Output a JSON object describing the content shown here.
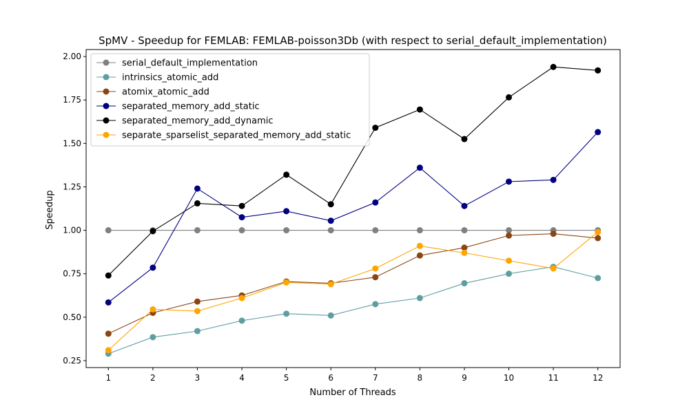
{
  "chart_data": {
    "type": "line",
    "title": "SpMV - Speedup for FEMLAB: FEMLAB-poisson3Db (with respect to serial_default_implementation)",
    "xlabel": "Number of Threads",
    "ylabel": "Speedup",
    "x": [
      1,
      2,
      3,
      4,
      5,
      6,
      7,
      8,
      9,
      10,
      11,
      12
    ],
    "xlim": [
      0.5,
      12.5
    ],
    "ylim": [
      0.21,
      2.04
    ],
    "yticks": [
      "0.25",
      "0.50",
      "0.75",
      "1.00",
      "1.25",
      "1.50",
      "1.75",
      "2.00"
    ],
    "grid": false,
    "legend_position": "top-left",
    "series": [
      {
        "name": "serial_default_implementation",
        "color": "#808080",
        "values": [
          1.0,
          1.0,
          1.0,
          1.0,
          1.0,
          1.0,
          1.0,
          1.0,
          1.0,
          1.0,
          1.0,
          1.0
        ]
      },
      {
        "name": "intrinsics_atomic_add",
        "color": "#5f9ea0",
        "values": [
          0.29,
          0.385,
          0.42,
          0.48,
          0.52,
          0.51,
          0.575,
          0.61,
          0.695,
          0.75,
          0.79,
          0.725
        ]
      },
      {
        "name": "atomix_atomic_add",
        "color": "#8b4513",
        "values": [
          0.405,
          0.525,
          0.59,
          0.625,
          0.705,
          0.695,
          0.73,
          0.855,
          0.9,
          0.97,
          0.98,
          0.955
        ]
      },
      {
        "name": "separated_memory_add_static",
        "color": "#000080",
        "values": [
          0.585,
          0.785,
          1.24,
          1.075,
          1.11,
          1.055,
          1.16,
          1.36,
          1.14,
          1.28,
          1.29,
          1.565
        ]
      },
      {
        "name": "separated_memory_add_dynamic",
        "color": "#000000",
        "values": [
          0.74,
          0.995,
          1.155,
          1.14,
          1.32,
          1.15,
          1.59,
          1.695,
          1.525,
          1.765,
          1.94,
          1.92
        ]
      },
      {
        "name": "separate_sparselist_separated_memory_add_static",
        "color": "#ffa500",
        "values": [
          0.31,
          0.545,
          0.535,
          0.61,
          0.7,
          0.69,
          0.78,
          0.91,
          0.87,
          0.825,
          0.78,
          0.99
        ]
      }
    ]
  }
}
